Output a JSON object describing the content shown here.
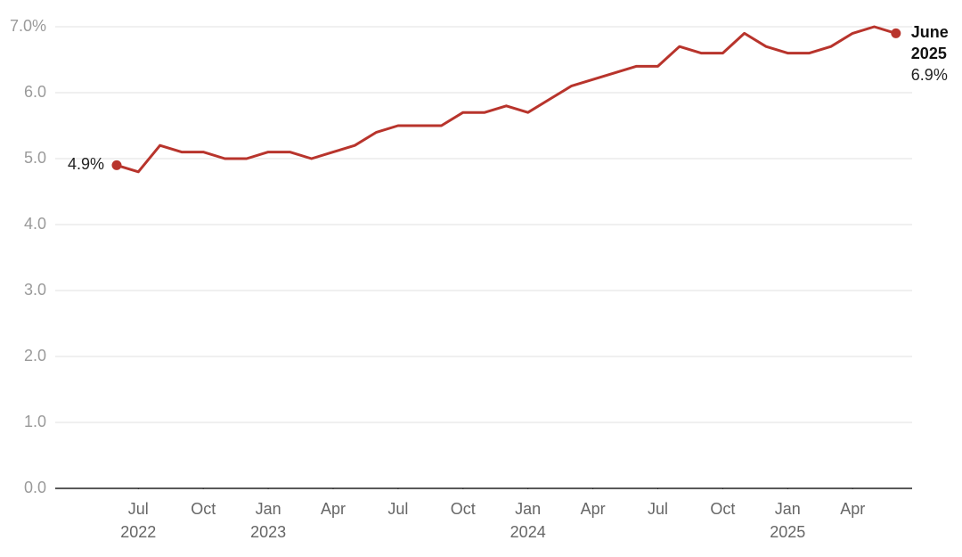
{
  "chart_data": {
    "type": "line",
    "x": [
      "2022-06",
      "2022-07",
      "2022-08",
      "2022-09",
      "2022-10",
      "2022-11",
      "2022-12",
      "2023-01",
      "2023-02",
      "2023-03",
      "2023-04",
      "2023-05",
      "2023-06",
      "2023-07",
      "2023-08",
      "2023-09",
      "2023-10",
      "2023-11",
      "2023-12",
      "2024-01",
      "2024-02",
      "2024-03",
      "2024-04",
      "2024-05",
      "2024-06",
      "2024-07",
      "2024-08",
      "2024-09",
      "2024-10",
      "2024-11",
      "2024-12",
      "2025-01",
      "2025-02",
      "2025-03",
      "2025-04",
      "2025-05",
      "2025-06"
    ],
    "series": [
      {
        "color": "#b8342c",
        "values": [
          4.9,
          4.8,
          5.2,
          5.1,
          5.1,
          5.0,
          5.0,
          5.1,
          5.1,
          5.0,
          5.1,
          5.2,
          5.4,
          5.5,
          5.5,
          5.5,
          5.7,
          5.7,
          5.8,
          5.7,
          5.9,
          6.1,
          6.2,
          6.3,
          6.4,
          6.4,
          6.7,
          6.6,
          6.6,
          6.9,
          6.7,
          6.6,
          6.6,
          6.7,
          6.9,
          7.0,
          6.9
        ],
        "value_labels": [
          "4.9%",
          null,
          null,
          null,
          null,
          null,
          null,
          null,
          null,
          null,
          null,
          null,
          null,
          null,
          null,
          null,
          null,
          null,
          null,
          null,
          null,
          null,
          null,
          null,
          null,
          null,
          null,
          null,
          null,
          null,
          null,
          null,
          null,
          null,
          null,
          null,
          "6.9%"
        ]
      }
    ],
    "end_label": [
      "June",
      "2025"
    ],
    "ylim": [
      0,
      7
    ],
    "yticks": [
      {
        "value": 0,
        "label": "0.0"
      },
      {
        "value": 1,
        "label": "1.0"
      },
      {
        "value": 2,
        "label": "2.0"
      },
      {
        "value": 3,
        "label": "3.0"
      },
      {
        "value": 4,
        "label": "4.0"
      },
      {
        "value": 5,
        "label": "5.0"
      },
      {
        "value": 6,
        "label": "6.0"
      },
      {
        "value": 7,
        "label": "7.0%"
      }
    ],
    "xticks": [
      {
        "value": "2022-07",
        "label": [
          "Jul",
          "2022"
        ]
      },
      {
        "value": "2022-10",
        "label": [
          "Oct"
        ]
      },
      {
        "value": "2023-01",
        "label": [
          "Jan",
          "2023"
        ]
      },
      {
        "value": "2023-04",
        "label": [
          "Apr"
        ]
      },
      {
        "value": "2023-07",
        "label": [
          "Jul"
        ]
      },
      {
        "value": "2023-10",
        "label": [
          "Oct"
        ]
      },
      {
        "value": "2024-01",
        "label": [
          "Jan",
          "2024"
        ]
      },
      {
        "value": "2024-04",
        "label": [
          "Apr"
        ]
      },
      {
        "value": "2024-07",
        "label": [
          "Jul"
        ]
      },
      {
        "value": "2024-10",
        "label": [
          "Oct"
        ]
      },
      {
        "value": "2025-01",
        "label": [
          "Jan",
          "2025"
        ]
      },
      {
        "value": "2025-04",
        "label": [
          "Apr"
        ]
      }
    ],
    "grid": true
  }
}
